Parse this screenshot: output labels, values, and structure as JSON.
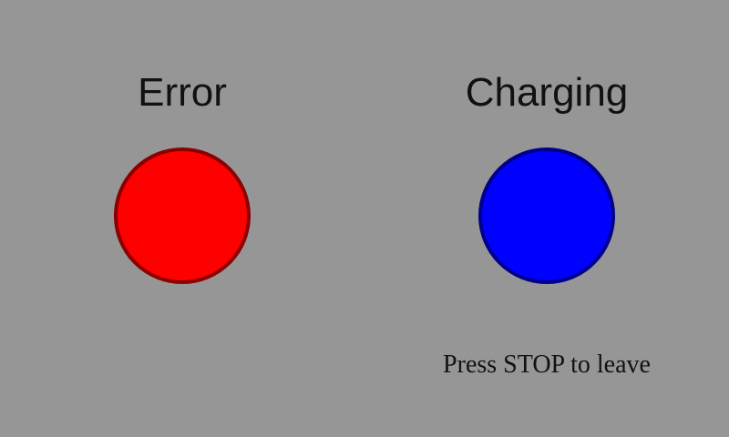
{
  "status_panels": [
    {
      "label": "Error",
      "indicator_color": "#ff0000",
      "indicator_border_color": "#8b0000"
    },
    {
      "label": "Charging",
      "indicator_color": "#0000ff",
      "indicator_border_color": "#00008b"
    }
  ],
  "hint": {
    "text": "Press STOP to leave"
  },
  "background_color": "#969696"
}
